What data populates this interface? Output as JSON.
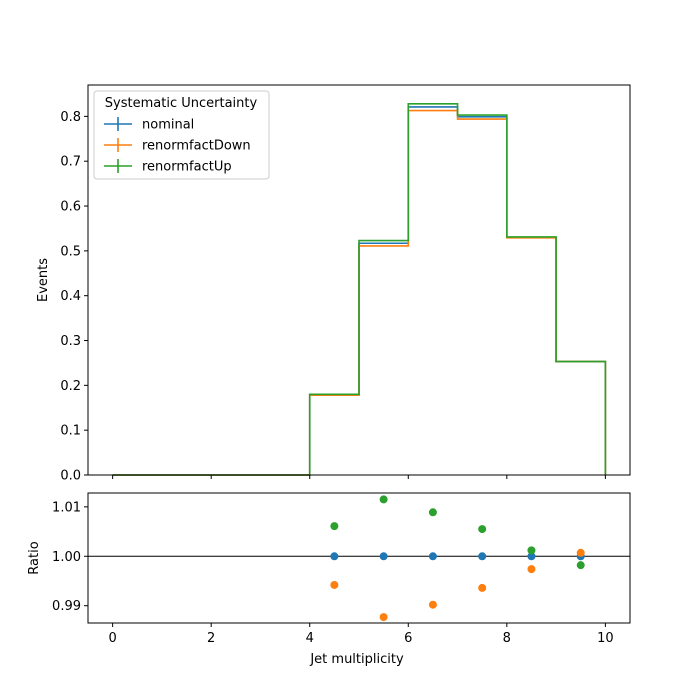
{
  "chart_data": [
    {
      "type": "line",
      "title": "",
      "xlabel": "",
      "ylabel": "Events",
      "xlim": [
        -0.5,
        10.5
      ],
      "ylim": [
        0,
        0.87
      ],
      "xticks": [
        0,
        2,
        4,
        6,
        8,
        10
      ],
      "yticks": [
        0.0,
        0.1,
        0.2,
        0.3,
        0.4,
        0.5,
        0.6,
        0.7,
        0.8
      ],
      "ytick_labels": [
        "0.0",
        "0.1",
        "0.2",
        "0.3",
        "0.4",
        "0.5",
        "0.6",
        "0.7",
        "0.8"
      ],
      "grid": false,
      "legend": {
        "title": "Systematic Uncertainty",
        "placement": "top-left"
      },
      "bin_edges": [
        0,
        1,
        2,
        3,
        4,
        5,
        6,
        7,
        8,
        9,
        10
      ],
      "series": [
        {
          "name": "nominal",
          "color": "#1f77b4",
          "values": [
            0,
            0,
            0,
            0,
            0.179,
            0.517,
            0.821,
            0.799,
            0.53,
            0.253
          ]
        },
        {
          "name": "renormfactDown",
          "color": "#ff7f0e",
          "values": [
            0,
            0,
            0,
            0,
            0.178,
            0.511,
            0.813,
            0.794,
            0.529,
            0.253
          ]
        },
        {
          "name": "renormfactUp",
          "color": "#2ca02c",
          "values": [
            0,
            0,
            0,
            0,
            0.18,
            0.523,
            0.828,
            0.803,
            0.531,
            0.253
          ]
        }
      ]
    },
    {
      "type": "scatter",
      "title": "",
      "xlabel": "Jet multiplicity",
      "ylabel": "Ratio",
      "xlim": [
        -0.5,
        10.5
      ],
      "ylim": [
        0.9865,
        1.0128
      ],
      "xticks": [
        0,
        2,
        4,
        6,
        8,
        10
      ],
      "yticks": [
        0.99,
        1.0,
        1.01
      ],
      "ytick_labels": [
        "0.99",
        "1.00",
        "1.01"
      ],
      "reference_line": 1.0,
      "grid": false,
      "x": [
        4.5,
        5.5,
        6.5,
        7.5,
        8.5,
        9.5
      ],
      "series": [
        {
          "name": "nominal",
          "color": "#1f77b4",
          "values": [
            1.0,
            1.0,
            1.0,
            1.0,
            1.0,
            1.0
          ]
        },
        {
          "name": "renormfactDown",
          "color": "#ff7f0e",
          "values": [
            0.9942,
            0.9877,
            0.9902,
            0.9936,
            0.9974,
            1.0007
          ]
        },
        {
          "name": "renormfactUp",
          "color": "#2ca02c",
          "values": [
            1.0061,
            1.0115,
            1.0089,
            1.0055,
            1.0012,
            0.9982
          ]
        }
      ]
    }
  ]
}
